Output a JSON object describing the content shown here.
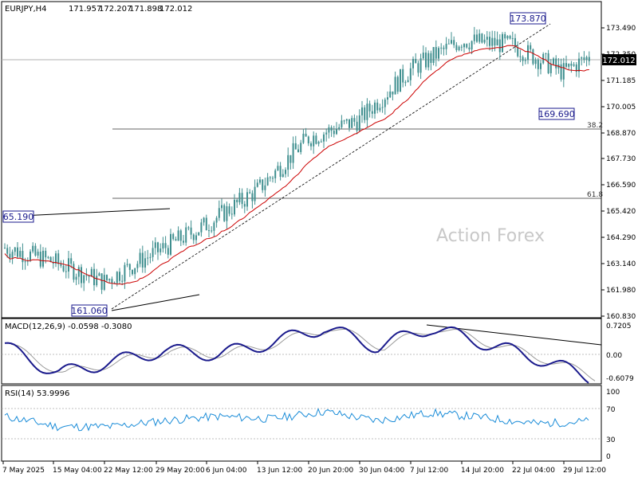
{
  "symbol_info": {
    "symbol": "EURJPY,H4",
    "open": "171.957",
    "high": "172.207",
    "low": "171.898",
    "close": "172.012"
  },
  "watermark": "Action Forex",
  "price_axis": {
    "ticks": [
      "173.490",
      "172.350",
      "171.185",
      "170.005",
      "168.870",
      "167.730",
      "166.590",
      "165.420",
      "164.290",
      "163.140",
      "161.980",
      "160.830"
    ],
    "current_price": "172.012"
  },
  "date_axis": [
    "7 May 2025",
    "15 May 04:00",
    "22 May 12:00",
    "29 May 20:00",
    "6 Jun 04:00",
    "13 Jun 12:00",
    "20 Jun 20:00",
    "30 Jun 04:00",
    "7 Jul 12:00",
    "14 Jul 20:00",
    "22 Jul 04:00",
    "29 Jul 12:00"
  ],
  "annotations": {
    "high_label": "173.870",
    "low_label": "161.060",
    "left_label": "65.190",
    "pullback_label": "169.690",
    "fib_382": "38.2",
    "fib_618": "61.8"
  },
  "macd": {
    "title": "MACD(12,26,9) -0.0598 -0.3080",
    "ticks": [
      "0.7205",
      "0.00",
      "-0.6079"
    ]
  },
  "rsi": {
    "title": "RSI(14) 53.9996",
    "ticks": [
      "100",
      "70",
      "30",
      "0"
    ]
  },
  "colors": {
    "candle": "#3f8f8f",
    "ma": "#cc0000",
    "macd_line": "#1a1a8c",
    "macd_signal": "#999999",
    "rsi_line": "#1a8cd8",
    "grid": "#cccccc"
  },
  "chart_data": [
    {
      "type": "candlestick",
      "series": [
        {
          "name": "price",
          "x": [
            "7 May 2025",
            "15 May 04:00",
            "22 May 12:00",
            "29 May 20:00",
            "6 Jun 04:00",
            "13 Jun 12:00",
            "20 Jun 20:00",
            "30 Jun 04:00",
            "7 Jul 12:00",
            "14 Jul 20:00",
            "22 Jul 04:00",
            "29 Jul 12:00"
          ],
          "values": [
            163.6,
            163.0,
            162.1,
            163.4,
            164.6,
            166.1,
            168.4,
            169.2,
            171.4,
            172.7,
            172.5,
            171.3
          ]
        }
      ],
      "ylim": [
        160.6,
        174.4
      ],
      "hlines": [
        172.012,
        168.87,
        165.95
      ]
    },
    {
      "type": "line",
      "series": [
        {
          "name": "MACD",
          "values": [
            0.2,
            -0.5,
            -0.2,
            0.1,
            0.0,
            0.3,
            0.7,
            0.2,
            0.7,
            0.3,
            -0.1,
            -0.6
          ]
        }
      ],
      "ylim": [
        -0.7,
        0.8
      ]
    },
    {
      "type": "line",
      "series": [
        {
          "name": "RSI",
          "values": [
            62,
            45,
            45,
            55,
            62,
            58,
            70,
            55,
            68,
            60,
            50,
            54
          ]
        }
      ],
      "ylim": [
        0,
        100
      ]
    }
  ]
}
